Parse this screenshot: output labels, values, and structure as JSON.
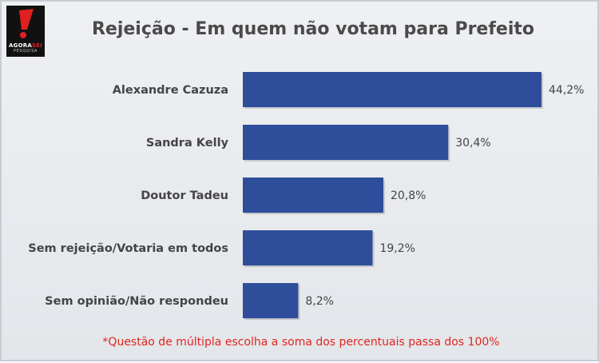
{
  "logo": {
    "text_main": "AGORA",
    "text_accent": "SEI",
    "text_sub": "PESQUISA"
  },
  "chart_data": {
    "type": "bar",
    "orientation": "horizontal",
    "title": "Rejeição - Em quem não votam para Prefeito",
    "categories": [
      "Alexandre Cazuza",
      "Sandra Kelly",
      "Doutor Tadeu",
      "Sem rejeição/Votaria em todos",
      "Sem opinião/Não respondeu"
    ],
    "values": [
      44.2,
      30.4,
      20.8,
      19.2,
      8.2
    ],
    "value_labels": [
      "44,2%",
      "30,4%",
      "20,8%",
      "19,2%",
      "8,2%"
    ],
    "xlim": [
      0,
      44.2
    ],
    "bar_color": "#2e4e9c",
    "grid": false,
    "legend": "none"
  },
  "footnote": "*Questão de múltipla escolha a soma dos percentuais passa dos 100%"
}
